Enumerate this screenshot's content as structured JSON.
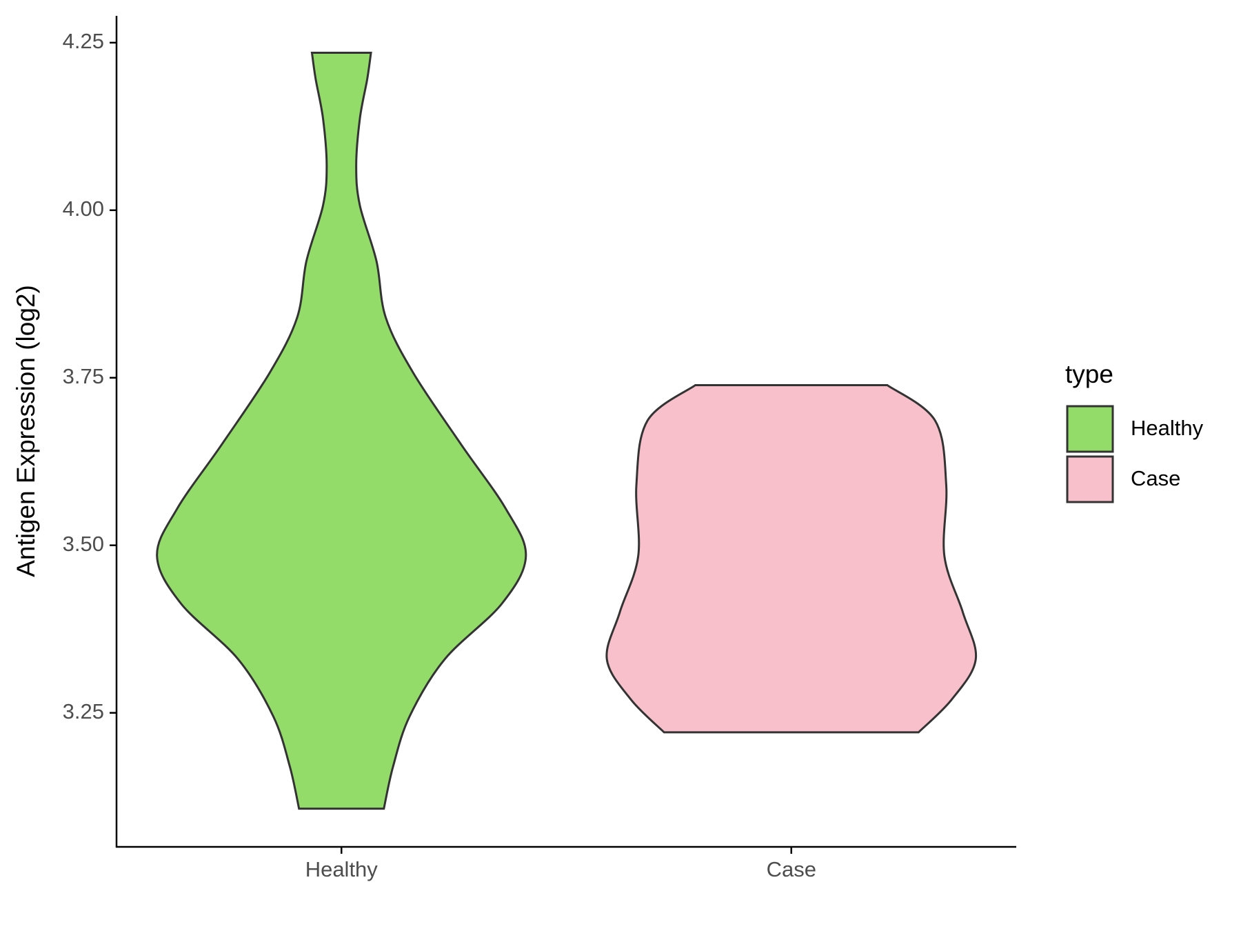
{
  "chart_data": {
    "type": "violin",
    "y_label": "Antigen Expression (log2)",
    "categories": [
      "Healthy",
      "Case"
    ],
    "legend_title": "type",
    "legend_position": "right",
    "series": [
      {
        "name": "Healthy",
        "color": "#93dc6a",
        "y": [
          3.107,
          3.17,
          3.245,
          3.33,
          3.413,
          3.484,
          3.555,
          3.65,
          3.757,
          3.84,
          3.924,
          4.007,
          4.066,
          4.137,
          4.196,
          4.235
        ],
        "density": [
          0.23,
          0.28,
          0.37,
          0.56,
          0.87,
          1,
          0.89,
          0.65,
          0.39,
          0.24,
          0.19,
          0.1,
          0.08,
          0.1,
          0.14,
          0.16
        ]
      },
      {
        "name": "Case",
        "color": "#f7c0cb",
        "y": [
          3.221,
          3.27,
          3.33,
          3.4,
          3.484,
          3.59,
          3.686,
          3.739
        ],
        "density": [
          0.69,
          0.87,
          1,
          0.93,
          0.83,
          0.84,
          0.78,
          0.52
        ]
      }
    ],
    "ylim": [
      3.05,
      4.29
    ],
    "yticks": [
      3.25,
      {
        "value": 3.5,
        "label": "3.50"
      },
      3.75,
      {
        "value": 4,
        "label": "4.00"
      },
      4.25
    ],
    "grid": false
  }
}
